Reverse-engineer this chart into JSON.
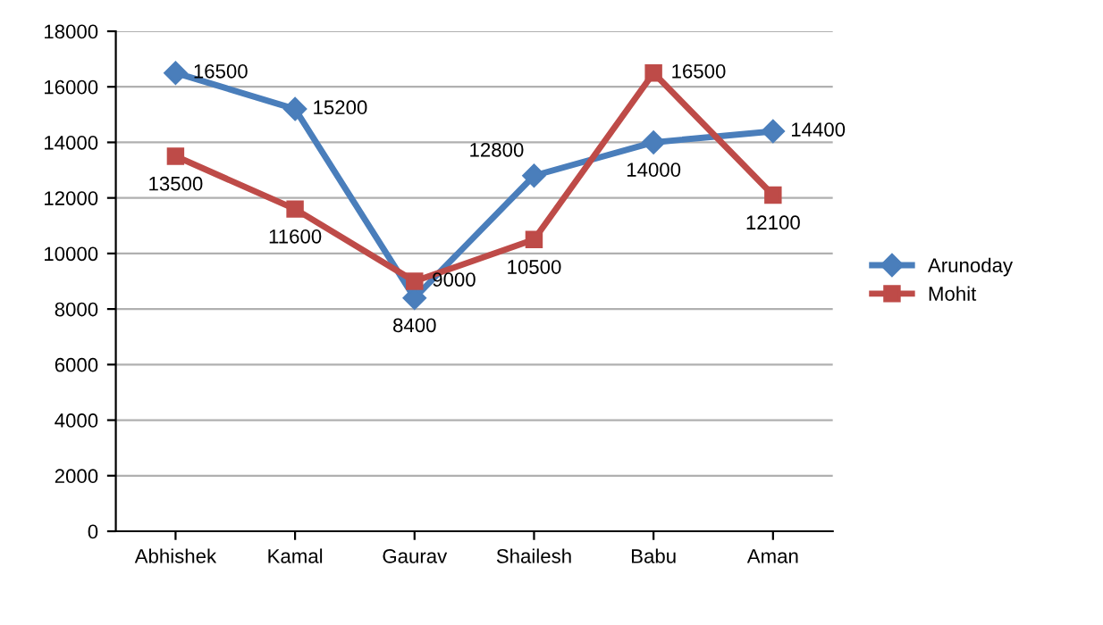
{
  "chart_data": {
    "type": "line",
    "categories": [
      "Abhishek",
      "Kamal",
      "Gaurav",
      "Shailesh",
      "Babu",
      "Aman"
    ],
    "series": [
      {
        "name": "Arunoday",
        "color": "#4a7ebb",
        "marker": "diamond",
        "values": [
          16500,
          15200,
          8400,
          12800,
          14000,
          14400
        ]
      },
      {
        "name": "Mohit",
        "color": "#be4b48",
        "marker": "square",
        "values": [
          13500,
          11600,
          9000,
          10500,
          16500,
          12100
        ]
      }
    ],
    "ylim": [
      0,
      18000
    ],
    "yticks": [
      0,
      2000,
      4000,
      6000,
      8000,
      10000,
      12000,
      14000,
      16000,
      18000
    ],
    "grid": "y",
    "legend": "right",
    "data_labels": true,
    "line_style": "solid"
  }
}
